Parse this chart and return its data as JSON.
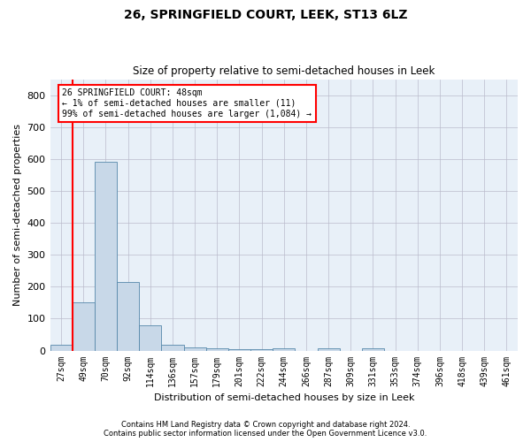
{
  "title": "26, SPRINGFIELD COURT, LEEK, ST13 6LZ",
  "subtitle": "Size of property relative to semi-detached houses in Leek",
  "xlabel": "Distribution of semi-detached houses by size in Leek",
  "ylabel": "Number of semi-detached properties",
  "categories": [
    "27sqm",
    "49sqm",
    "70sqm",
    "92sqm",
    "114sqm",
    "136sqm",
    "157sqm",
    "179sqm",
    "201sqm",
    "222sqm",
    "244sqm",
    "266sqm",
    "287sqm",
    "309sqm",
    "331sqm",
    "353sqm",
    "374sqm",
    "396sqm",
    "418sqm",
    "439sqm",
    "461sqm"
  ],
  "values": [
    18,
    150,
    590,
    215,
    78,
    18,
    10,
    8,
    5,
    5,
    8,
    0,
    8,
    0,
    8,
    0,
    0,
    0,
    0,
    0,
    0
  ],
  "bar_color": "#c8d8e8",
  "bar_edge_color": "#5588aa",
  "background_color": "#e8f0f8",
  "grid_color": "#cccccc",
  "red_line_x": 0.5,
  "annotation_text": "26 SPRINGFIELD COURT: 48sqm\n← 1% of semi-detached houses are smaller (11)\n99% of semi-detached houses are larger (1,084) →",
  "footer1": "Contains HM Land Registry data © Crown copyright and database right 2024.",
  "footer2": "Contains public sector information licensed under the Open Government Licence v3.0.",
  "ylim": [
    0,
    850
  ],
  "yticks": [
    0,
    100,
    200,
    300,
    400,
    500,
    600,
    700,
    800
  ]
}
